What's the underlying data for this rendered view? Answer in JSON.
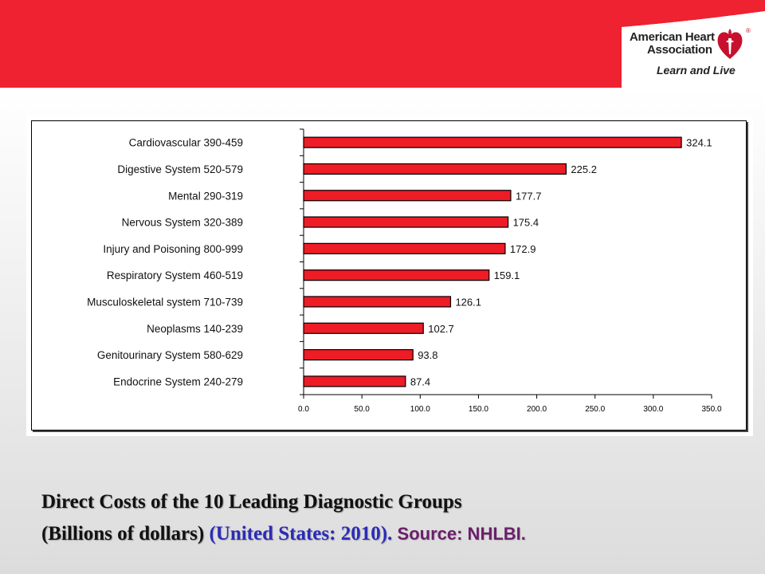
{
  "brand": {
    "name_line1": "American Heart",
    "name_line2": "Association",
    "tagline": "Learn and Live",
    "registered": "®",
    "accent": "#ee2230",
    "logo_red": "#c8102e"
  },
  "chart_data": {
    "type": "bar",
    "orientation": "horizontal",
    "categories": [
      "Cardiovascular  390-459",
      "Digestive System  520-579",
      "Mental  290-319",
      "Nervous System  320-389",
      "Injury and Poisoning  800-999",
      "Respiratory System  460-519",
      "Musculoskeletal system  710-739",
      "Neoplasms  140-239",
      "Genitourinary System  580-629",
      "Endocrine System  240-279"
    ],
    "values": [
      324.1,
      225.2,
      177.7,
      175.4,
      172.9,
      159.1,
      126.1,
      102.7,
      93.8,
      87.4
    ],
    "value_labels": [
      "324.1",
      "225.2",
      "177.7",
      "175.4",
      "172.9",
      "159.1",
      "126.1",
      "102.7",
      "93.8",
      "87.4"
    ],
    "xlim": [
      0,
      350
    ],
    "xticks": [
      "0.0",
      "50.0",
      "100.0",
      "150.0",
      "200.0",
      "250.0",
      "300.0",
      "350.0"
    ],
    "bar_color": "#ee1c25",
    "grid": false,
    "legend": "none"
  },
  "caption": {
    "line1": "Direct Costs of the 10 Leading Diagnostic Groups",
    "line2_part1": "(Billions of dollars)",
    "line2_part2": "(United States: 2010).",
    "line2_source": "Source: NHLBI."
  }
}
